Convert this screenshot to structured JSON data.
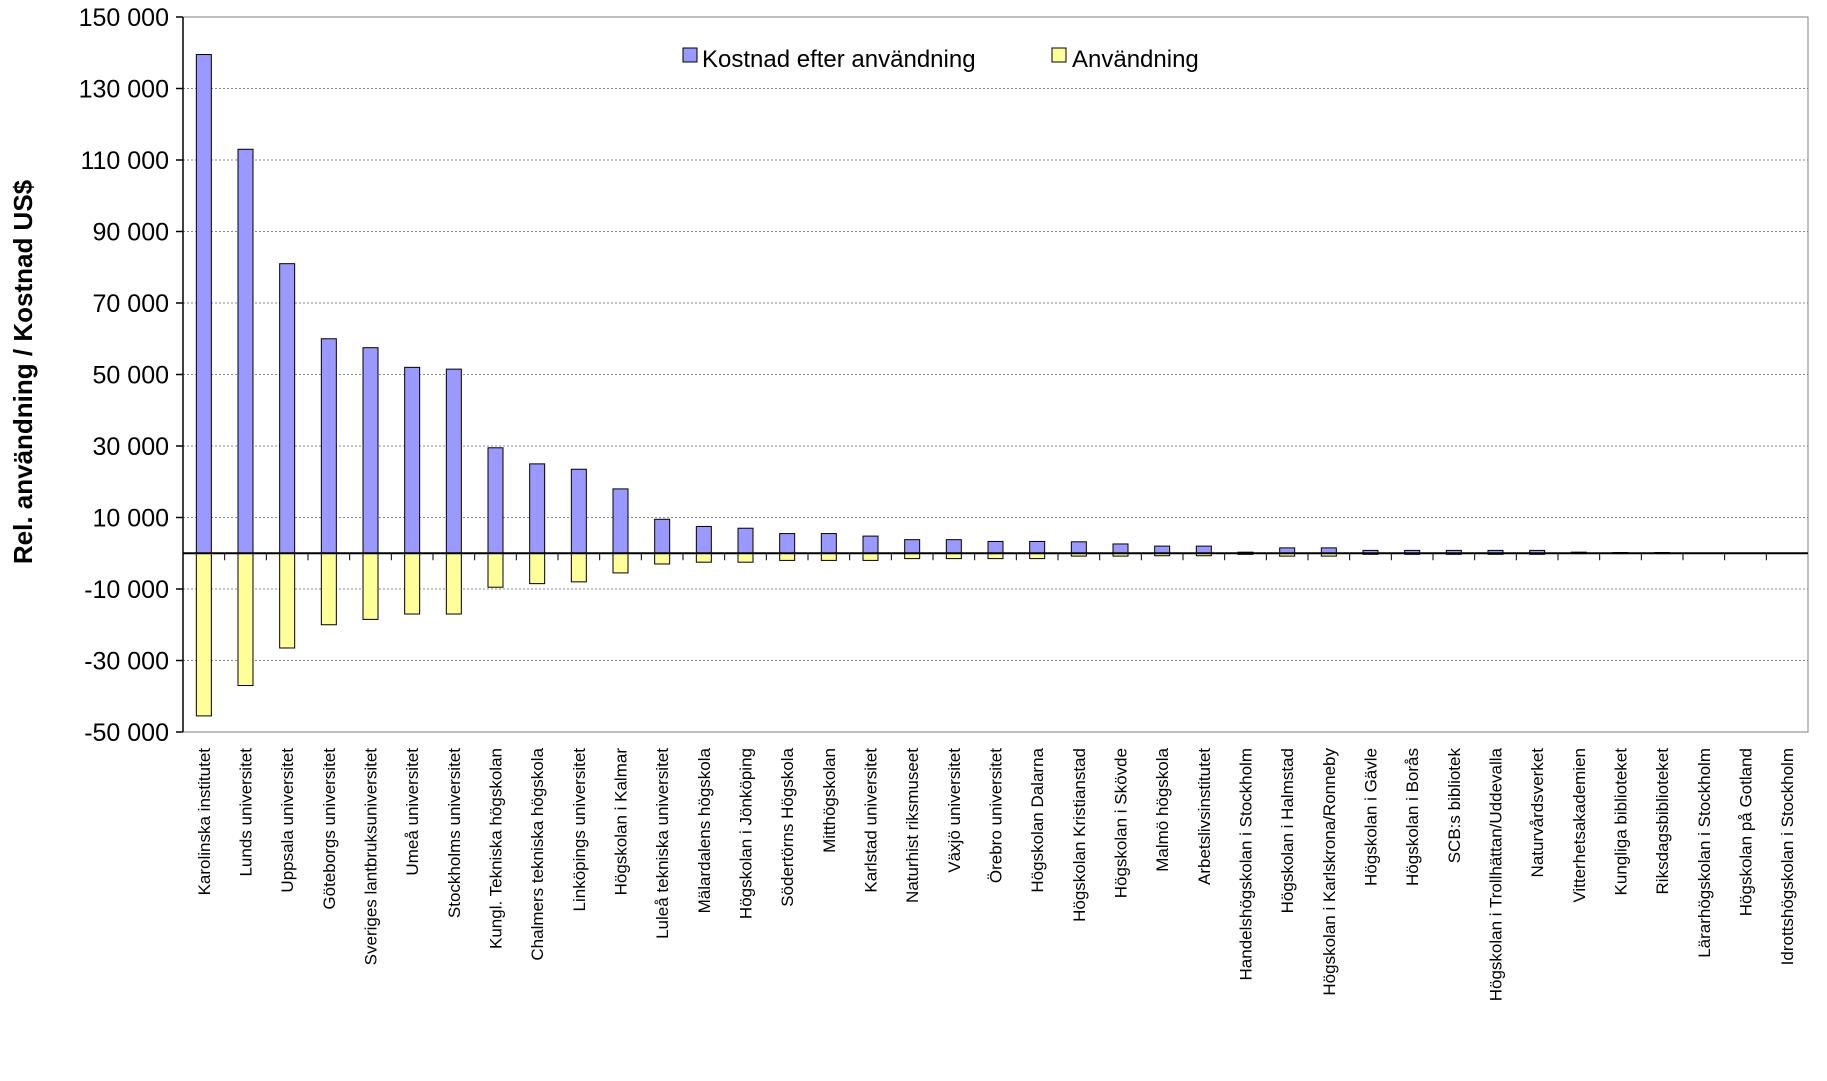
{
  "chart_data": {
    "type": "bar",
    "ylabel": "Rel. användning / Kostnad US$",
    "xlabel": "",
    "ylim": [
      -50000,
      150000
    ],
    "yticks": [
      150000,
      130000,
      110000,
      90000,
      70000,
      50000,
      30000,
      10000,
      -10000,
      -30000,
      -50000
    ],
    "ytick_labels": [
      "150 000",
      "130 000",
      "110 000",
      "90 000",
      "70 000",
      "50 000",
      "30 000",
      "10 000",
      "-10 000",
      "-30 000",
      "-50 000"
    ],
    "grid": true,
    "legend_position": "top-center",
    "categories": [
      "Karolinska institutet",
      "Lunds universitet",
      "Uppsala universitet",
      "Göteborgs universitet",
      "Sveriges lantbruksuniversitet",
      "Umeå universitet",
      "Stockholms universitet",
      "Kungl. Tekniska högskolan",
      "Chalmers tekniska högskola",
      "Linköpings universitet",
      "Högskolan i Kalmar",
      "Luleå tekniska universitet",
      "Mälardalens högskola",
      "Högskolan i Jönköping",
      "Södertörns Högskola",
      "Mitthögskolan",
      "Karlstad universitet",
      "Naturhist riksmuseet",
      "Växjö universitet",
      "Örebro universitet",
      "Högskolan Dalarna",
      "Högskolan Kristianstad",
      "Högskolan i Skövde",
      "Malmö högskola",
      "Arbetslivsinstitutet",
      "Handelshögskolan i Stockholm",
      "Högskolan i Halmstad",
      "Högskolan i Karlskrona/Ronneby",
      "Högskolan i Gävle",
      "Högskolan i Borås",
      "SCB:s bibliotek",
      "Högskolan i Trollhättan/Uddevalla",
      "Naturvårdsverket",
      "Vitterhetsakademien",
      "Kungliga biblioteket",
      "Riksdagsbiblioteket",
      "Lärarhögskolan i Stockholm",
      "Högskolan på Gotland",
      "Idrottshögskolan i Stockholm"
    ],
    "series": [
      {
        "name": "Kostnad efter användning",
        "color": "#9999ff",
        "values": [
          139500,
          113000,
          81000,
          60000,
          57500,
          52000,
          51500,
          29500,
          25000,
          23500,
          18000,
          9500,
          7500,
          7000,
          5500,
          5500,
          4800,
          3800,
          3800,
          3300,
          3300,
          3200,
          2600,
          2000,
          2000,
          300,
          1500,
          1500,
          800,
          800,
          800,
          800,
          800,
          300,
          200,
          200,
          0,
          0,
          0
        ]
      },
      {
        "name": "Användning",
        "color": "#ffff99",
        "values": [
          -45500,
          -37000,
          -26500,
          -20000,
          -18500,
          -17000,
          -17000,
          -9500,
          -8500,
          -8000,
          -5500,
          -3000,
          -2500,
          -2500,
          -2000,
          -2000,
          -2000,
          -1500,
          -1500,
          -1500,
          -1500,
          -800,
          -800,
          -700,
          -700,
          -300,
          -800,
          -800,
          -300,
          -300,
          -300,
          -300,
          -300,
          -100,
          -100,
          -100,
          0,
          0,
          0
        ]
      }
    ]
  }
}
